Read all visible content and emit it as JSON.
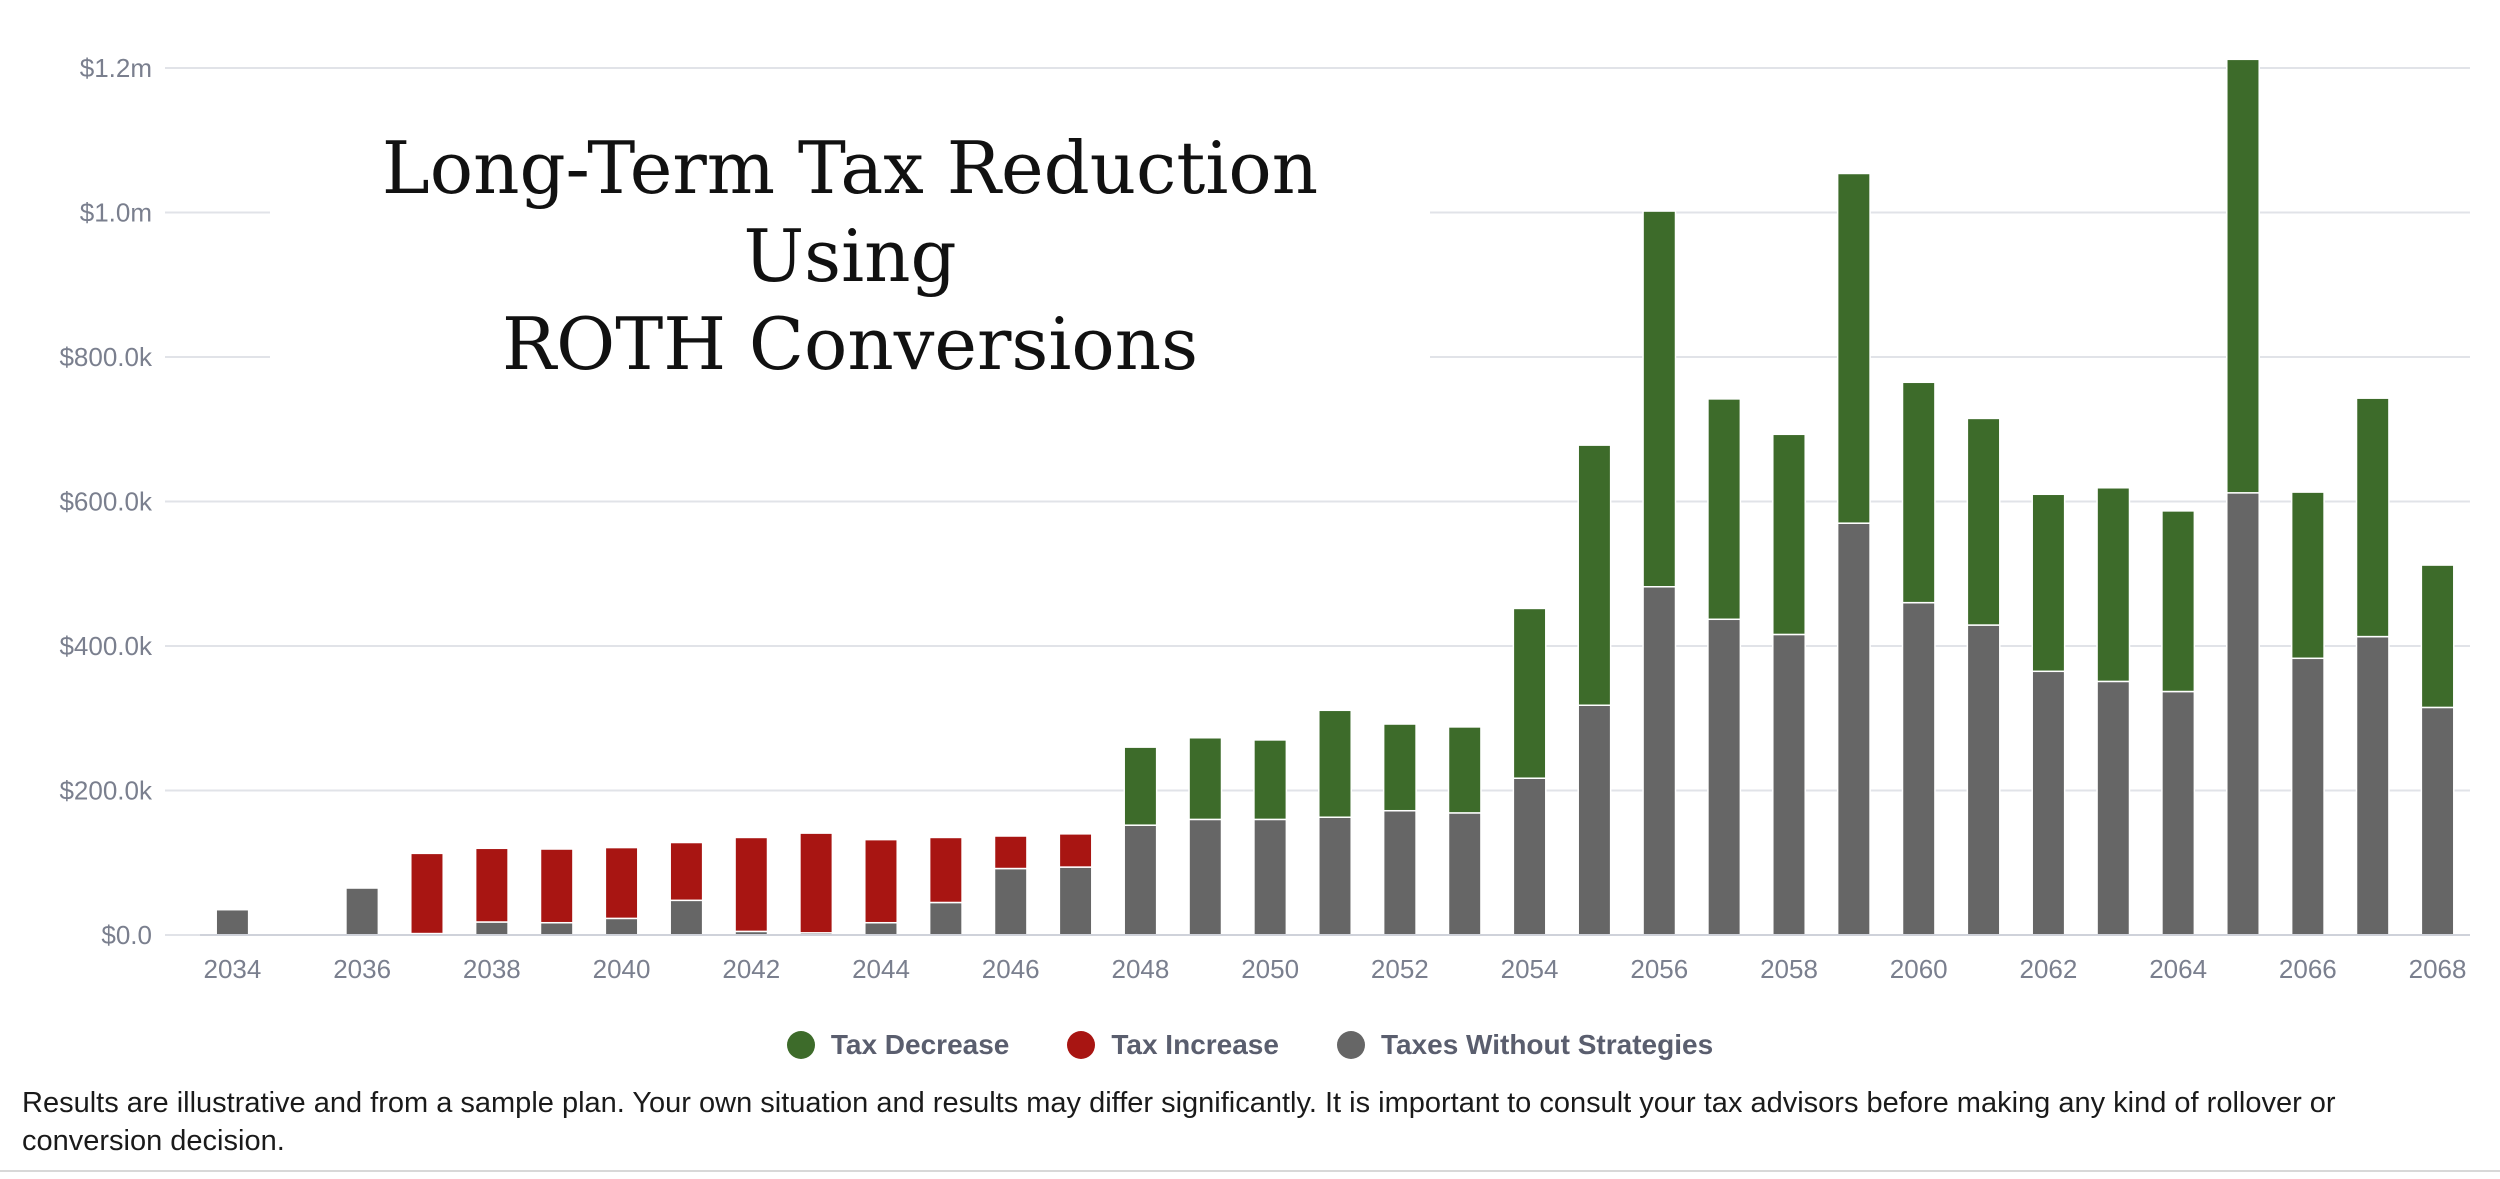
{
  "chart_data": {
    "type": "bar",
    "stacked": true,
    "title": "Long-Term Tax Reduction Using ROTH Conversions",
    "title_lines": [
      "Long-Term Tax Reduction Using",
      "ROTH Conversions"
    ],
    "ylim": [
      0,
      1200000
    ],
    "y_ticks": [
      0,
      200000,
      400000,
      600000,
      800000,
      1000000,
      1200000
    ],
    "y_tick_labels": [
      "$0.0",
      "$200.0k",
      "$400.0k",
      "$600.0k",
      "$800.0k",
      "$1.0m",
      "$1.2m"
    ],
    "x_ticks": [
      2034,
      2036,
      2038,
      2040,
      2042,
      2044,
      2046,
      2048,
      2050,
      2052,
      2054,
      2056,
      2058,
      2060,
      2062,
      2064,
      2066,
      2068
    ],
    "grid": true,
    "legend_position": "bottom-center",
    "categories": [
      2034,
      2035,
      2036,
      2037,
      2038,
      2039,
      2040,
      2041,
      2042,
      2043,
      2044,
      2045,
      2046,
      2047,
      2048,
      2049,
      2050,
      2051,
      2052,
      2053,
      2054,
      2055,
      2056,
      2057,
      2058,
      2059,
      2060,
      2061,
      2062,
      2063,
      2064,
      2065,
      2066,
      2067,
      2068
    ],
    "series": [
      {
        "name": "Taxes Without Strategies",
        "color": "#666666",
        "values": [
          35000,
          0,
          65000,
          2000,
          18000,
          17000,
          23000,
          48000,
          5000,
          3000,
          17000,
          45000,
          92000,
          94000,
          152000,
          160000,
          160000,
          163000,
          172000,
          169000,
          217000,
          318000,
          482000,
          437000,
          416000,
          570000,
          460000,
          429000,
          365000,
          351000,
          337000,
          612000,
          383000,
          413000,
          315000
        ]
      },
      {
        "name": "Tax Increase",
        "color": "#a81512",
        "values": [
          0,
          0,
          0,
          111000,
          102000,
          102000,
          98000,
          80000,
          130000,
          138000,
          115000,
          90000,
          45000,
          46000,
          0,
          0,
          0,
          0,
          0,
          0,
          0,
          0,
          0,
          0,
          0,
          0,
          0,
          0,
          0,
          0,
          0,
          0,
          0,
          0,
          0
        ]
      },
      {
        "name": "Tax Decrease",
        "color": "#3d6b2a",
        "values": [
          0,
          0,
          0,
          0,
          0,
          0,
          0,
          0,
          0,
          0,
          0,
          0,
          0,
          0,
          108000,
          113000,
          110000,
          148000,
          120000,
          119000,
          235000,
          360000,
          520000,
          305000,
          277000,
          484000,
          305000,
          286000,
          245000,
          268000,
          250000,
          600000,
          230000,
          330000,
          197000
        ]
      }
    ]
  },
  "legend": {
    "items": [
      {
        "label": "Tax Decrease",
        "color": "#3d6b2a"
      },
      {
        "label": "Tax Increase",
        "color": "#a81512"
      },
      {
        "label": "Taxes Without Strategies",
        "color": "#666666"
      }
    ]
  },
  "footnote": "Results are illustrative and from a sample plan. Your own situation and results may differ significantly. It is important to consult your tax advisors before making any kind of rollover or conversion decision."
}
